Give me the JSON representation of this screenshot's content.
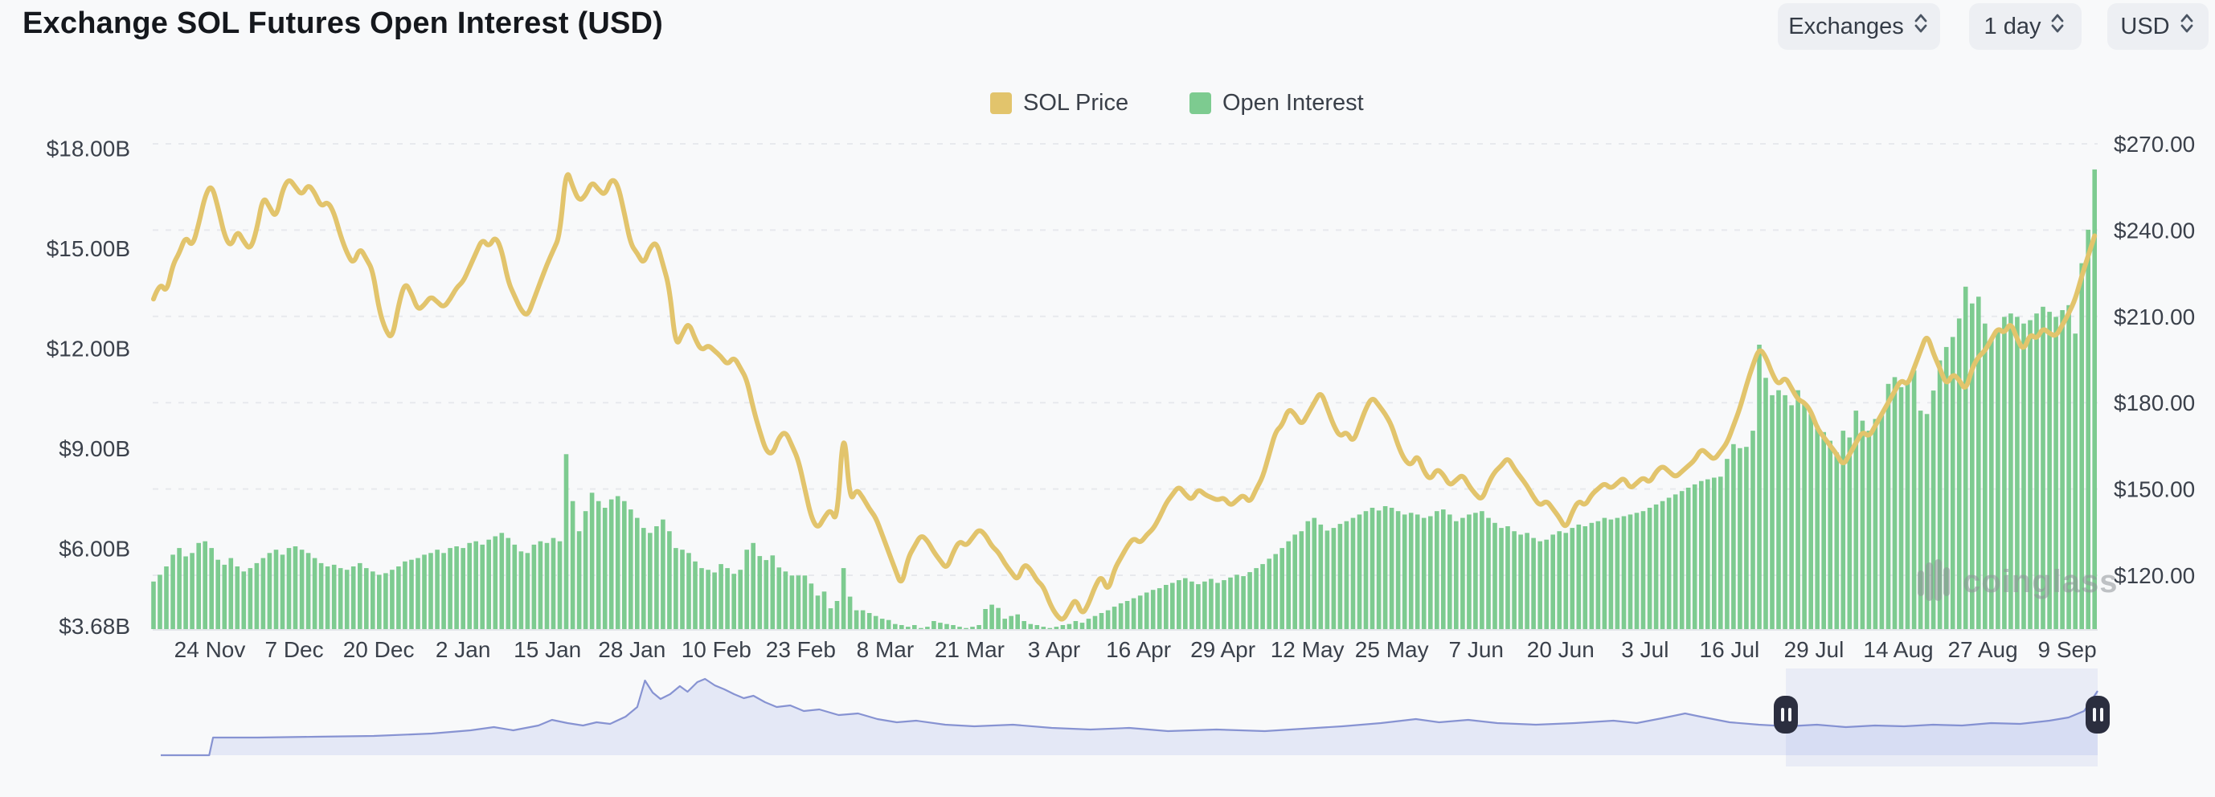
{
  "header": {
    "title": "Exchange SOL Futures Open Interest (USD)",
    "controls": [
      {
        "id": "exchanges",
        "label": "Exchanges"
      },
      {
        "id": "interval",
        "label": "1 day"
      },
      {
        "id": "currency",
        "label": "USD"
      }
    ]
  },
  "legend": [
    {
      "label": "SOL Price",
      "color": "#E2C46C"
    },
    {
      "label": "Open Interest",
      "color": "#7DCB90"
    }
  ],
  "watermark": "coinglass",
  "chart_data": {
    "type": "mixed-bar-line",
    "title": "Exchange SOL Futures Open Interest (USD)",
    "x_axis": {
      "tick_labels": [
        "24 Nov",
        "7 Dec",
        "20 Dec",
        "2 Jan",
        "15 Jan",
        "28 Jan",
        "10 Feb",
        "23 Feb",
        "8 Mar",
        "21 Mar",
        "3 Apr",
        "16 Apr",
        "29 Apr",
        "12 May",
        "25 May",
        "7 Jun",
        "20 Jun",
        "3 Jul",
        "16 Jul",
        "29 Jul",
        "14 Aug",
        "27 Aug",
        "9 Sep"
      ]
    },
    "left_axis": {
      "tick_labels": [
        "$18.00B",
        "$15.00B",
        "$12.00B",
        "$9.00B",
        "$6.00B",
        "$3.68B"
      ],
      "tick_values": [
        18,
        15,
        12,
        9,
        6,
        3.68
      ],
      "min": 3.68,
      "max": 18,
      "unit": "USD billions"
    },
    "right_axis": {
      "tick_labels": [
        "$270.00",
        "$240.00",
        "$210.00",
        "$180.00",
        "$150.00",
        "$120.00"
      ],
      "tick_values": [
        270,
        240,
        210,
        180,
        150,
        120
      ],
      "min": 101,
      "max": 281,
      "unit": "USD"
    },
    "grid": {
      "horizontal": true,
      "vertical": false,
      "style": "dashed"
    },
    "legend_position": "top-center",
    "series": [
      {
        "name": "Open Interest",
        "type": "bar",
        "axis": "left",
        "color": "#7DCB90",
        "values": [
          5.1,
          5.3,
          5.55,
          5.9,
          6.1,
          5.85,
          5.95,
          6.25,
          6.3,
          6.1,
          5.75,
          5.6,
          5.8,
          5.55,
          5.4,
          5.5,
          5.65,
          5.8,
          5.95,
          6.05,
          5.9,
          6.1,
          6.15,
          6.05,
          5.95,
          5.8,
          5.65,
          5.55,
          5.6,
          5.5,
          5.45,
          5.55,
          5.65,
          5.5,
          5.4,
          5.3,
          5.35,
          5.45,
          5.55,
          5.7,
          5.75,
          5.8,
          5.9,
          5.95,
          6.05,
          5.95,
          6.1,
          6.15,
          6.1,
          6.25,
          6.3,
          6.2,
          6.35,
          6.45,
          6.55,
          6.4,
          6.2,
          6.0,
          5.95,
          6.2,
          6.3,
          6.25,
          6.4,
          6.3,
          8.9,
          7.5,
          6.6,
          7.2,
          7.75,
          7.5,
          7.3,
          7.55,
          7.65,
          7.5,
          7.25,
          7.0,
          6.7,
          6.55,
          6.75,
          6.95,
          6.6,
          6.1,
          6.05,
          5.95,
          5.7,
          5.5,
          5.45,
          5.37,
          5.62,
          5.5,
          5.33,
          5.45,
          6.05,
          6.25,
          5.86,
          5.74,
          5.88,
          5.52,
          5.4,
          5.28,
          5.28,
          5.28,
          5.04,
          4.68,
          4.8,
          4.3,
          4.52,
          5.5,
          4.65,
          4.24,
          4.24,
          4.16,
          4.07,
          3.99,
          3.95,
          3.83,
          3.8,
          3.75,
          3.8,
          3.71,
          3.75,
          3.92,
          3.87,
          3.83,
          3.8,
          3.75,
          3.71,
          3.75,
          3.8,
          4.28,
          4.41,
          4.31,
          3.99,
          4.07,
          4.12,
          3.92,
          3.83,
          3.8,
          3.75,
          3.71,
          3.75,
          3.8,
          3.83,
          3.92,
          3.87,
          3.99,
          4.07,
          4.16,
          4.24,
          4.35,
          4.45,
          4.52,
          4.6,
          4.68,
          4.77,
          4.85,
          4.9,
          5.0,
          5.06,
          5.14,
          5.2,
          5.1,
          5.02,
          5.1,
          5.18,
          5.06,
          5.14,
          5.22,
          5.3,
          5.26,
          5.38,
          5.5,
          5.62,
          5.78,
          5.92,
          6.1,
          6.3,
          6.5,
          6.6,
          6.9,
          7.0,
          6.8,
          6.62,
          6.7,
          6.82,
          6.9,
          7.0,
          7.1,
          7.2,
          7.3,
          7.22,
          7.35,
          7.3,
          7.2,
          7.1,
          7.15,
          7.1,
          7.0,
          7.05,
          7.2,
          7.25,
          7.1,
          6.9,
          7.0,
          7.1,
          7.15,
          7.2,
          7.0,
          6.85,
          6.7,
          6.75,
          6.6,
          6.5,
          6.55,
          6.4,
          6.3,
          6.35,
          6.5,
          6.6,
          6.55,
          6.7,
          6.8,
          6.75,
          6.85,
          6.9,
          7.0,
          6.95,
          7.0,
          7.05,
          7.1,
          7.15,
          7.2,
          7.3,
          7.4,
          7.5,
          7.6,
          7.7,
          7.8,
          7.9,
          8.0,
          8.1,
          8.15,
          8.2,
          8.23,
          8.76,
          9.2,
          9.08,
          9.12,
          9.6,
          12.17,
          11.18,
          10.66,
          10.81,
          10.66,
          10.36,
          10.81,
          10.4,
          10.1,
          9.75,
          9.56,
          9.3,
          8.95,
          9.6,
          9.4,
          10.2,
          9.9,
          9.6,
          9.95,
          10.06,
          11.0,
          11.2,
          10.9,
          11.1,
          11.4,
          10.2,
          10.1,
          10.8,
          11.7,
          12.1,
          12.4,
          12.95,
          13.9,
          13.4,
          13.6,
          12.8,
          12.35,
          12.65,
          13.0,
          13.1,
          13.0,
          12.8,
          12.9,
          13.1,
          13.3,
          13.15,
          13.0,
          13.2,
          13.35,
          12.5,
          14.6,
          15.6,
          17.4
        ]
      },
      {
        "name": "SOL Price",
        "type": "line",
        "axis": "right",
        "color": "#E2C46C",
        "values": [
          216,
          222,
          218,
          228,
          232,
          238,
          234,
          242,
          252,
          256,
          248,
          238,
          234,
          240,
          236,
          233,
          240,
          252,
          248,
          244,
          254,
          258,
          255,
          252,
          256,
          253,
          248,
          250,
          246,
          238,
          232,
          228,
          234,
          230,
          226,
          212,
          205,
          202,
          214,
          222,
          218,
          212,
          214,
          217,
          215,
          213,
          216,
          220,
          222,
          227,
          232,
          237,
          234,
          238,
          233,
          222,
          217,
          212,
          210,
          216,
          222,
          228,
          233,
          238,
          262,
          255,
          250,
          252,
          257,
          254,
          252,
          258,
          256,
          246,
          235,
          232,
          228,
          234,
          236,
          228,
          220,
          199,
          204,
          208,
          202,
          198,
          200,
          198,
          196,
          193,
          196,
          192,
          188,
          178,
          170,
          163,
          162,
          168,
          170,
          165,
          160,
          150,
          140,
          136,
          140,
          143,
          138,
          174,
          145,
          150,
          147,
          143,
          140,
          134,
          128,
          122,
          116,
          126,
          130,
          134,
          132,
          128,
          125,
          122,
          128,
          132,
          130,
          133,
          136,
          134,
          130,
          128,
          124,
          121,
          118,
          124,
          122,
          118,
          116,
          110,
          106,
          104,
          108,
          112,
          106,
          110,
          116,
          120,
          114,
          122,
          126,
          130,
          133,
          131,
          134,
          136,
          140,
          145,
          148,
          151,
          148,
          146,
          150,
          148,
          147,
          146,
          147,
          144,
          146,
          148,
          145,
          150,
          154,
          162,
          170,
          172,
          178,
          176,
          172,
          176,
          180,
          184,
          178,
          172,
          168,
          170,
          166,
          172,
          178,
          182,
          179,
          176,
          172,
          165,
          160,
          158,
          162,
          156,
          153,
          157,
          155,
          151,
          153,
          155,
          151,
          148,
          146,
          152,
          156,
          158,
          161,
          157,
          154,
          151,
          147,
          144,
          146,
          143,
          140,
          136,
          142,
          146,
          144,
          148,
          150,
          152,
          150,
          152,
          154,
          150,
          152,
          154,
          152,
          156,
          158,
          156,
          154,
          156,
          158,
          160,
          164,
          162,
          160,
          163,
          166,
          172,
          178,
          186,
          193,
          199,
          196,
          190,
          186,
          189,
          185,
          181,
          180,
          177,
          171,
          168,
          165,
          162,
          158,
          162,
          166,
          170,
          168,
          172,
          176,
          180,
          184,
          188,
          186,
          192,
          198,
          204,
          197,
          192,
          186,
          190,
          188,
          184,
          192,
          196,
          198,
          202,
          206,
          204,
          208,
          202,
          198,
          204,
          202,
          206,
          204,
          203,
          207,
          211,
          216,
          224,
          231,
          238
        ]
      }
    ],
    "navigator": {
      "line_color": "#8793d2",
      "fill_color": "#e4e8f6",
      "selection": {
        "from": 0.839,
        "to": 1.0
      },
      "points": [
        [
          0,
          0
        ],
        [
          0.025,
          0
        ],
        [
          0.027,
          22
        ],
        [
          0.05,
          22
        ],
        [
          0.08,
          23
        ],
        [
          0.11,
          24
        ],
        [
          0.14,
          27
        ],
        [
          0.16,
          31
        ],
        [
          0.172,
          35
        ],
        [
          0.182,
          31
        ],
        [
          0.195,
          37
        ],
        [
          0.202,
          44
        ],
        [
          0.21,
          40
        ],
        [
          0.218,
          37
        ],
        [
          0.225,
          41
        ],
        [
          0.232,
          39
        ],
        [
          0.24,
          48
        ],
        [
          0.246,
          60
        ],
        [
          0.25,
          93
        ],
        [
          0.254,
          78
        ],
        [
          0.258,
          70
        ],
        [
          0.263,
          76
        ],
        [
          0.268,
          86
        ],
        [
          0.272,
          79
        ],
        [
          0.277,
          91
        ],
        [
          0.281,
          95
        ],
        [
          0.286,
          87
        ],
        [
          0.291,
          82
        ],
        [
          0.296,
          76
        ],
        [
          0.301,
          71
        ],
        [
          0.306,
          74
        ],
        [
          0.312,
          66
        ],
        [
          0.318,
          60
        ],
        [
          0.325,
          62
        ],
        [
          0.332,
          55
        ],
        [
          0.34,
          57
        ],
        [
          0.35,
          50
        ],
        [
          0.36,
          52
        ],
        [
          0.37,
          45
        ],
        [
          0.38,
          41
        ],
        [
          0.39,
          43
        ],
        [
          0.405,
          38
        ],
        [
          0.42,
          36
        ],
        [
          0.44,
          38
        ],
        [
          0.46,
          34
        ],
        [
          0.48,
          32
        ],
        [
          0.5,
          34
        ],
        [
          0.52,
          30
        ],
        [
          0.545,
          32
        ],
        [
          0.57,
          30
        ],
        [
          0.59,
          33
        ],
        [
          0.61,
          36
        ],
        [
          0.63,
          40
        ],
        [
          0.648,
          45
        ],
        [
          0.66,
          41
        ],
        [
          0.675,
          44
        ],
        [
          0.69,
          40
        ],
        [
          0.71,
          38
        ],
        [
          0.73,
          40
        ],
        [
          0.75,
          43
        ],
        [
          0.762,
          40
        ],
        [
          0.775,
          46
        ],
        [
          0.787,
          52
        ],
        [
          0.795,
          48
        ],
        [
          0.81,
          41
        ],
        [
          0.825,
          38
        ],
        [
          0.84,
          36
        ],
        [
          0.855,
          38
        ],
        [
          0.87,
          35
        ],
        [
          0.885,
          37
        ],
        [
          0.9,
          36
        ],
        [
          0.915,
          38
        ],
        [
          0.93,
          37
        ],
        [
          0.945,
          40
        ],
        [
          0.96,
          39
        ],
        [
          0.975,
          43
        ],
        [
          0.985,
          47
        ],
        [
          0.993,
          55
        ],
        [
          1,
          80
        ]
      ]
    }
  }
}
